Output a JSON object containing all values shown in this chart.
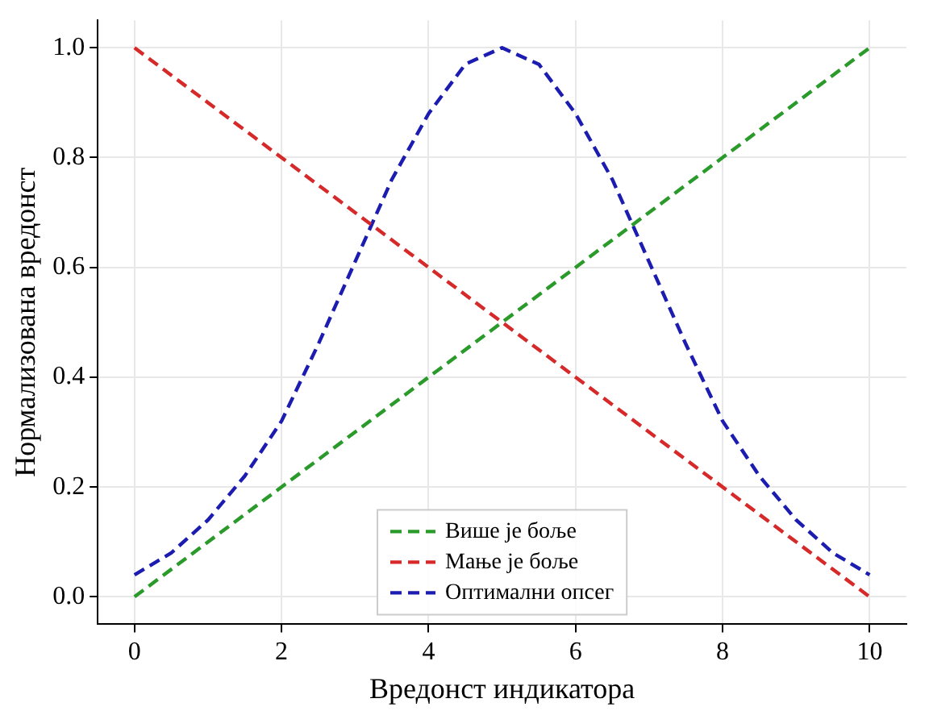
{
  "chart_data": {
    "type": "line",
    "xlabel": "Вредонст индикатора",
    "ylabel": "Нормализована вредонст",
    "xlim": [
      -0.5,
      10.5
    ],
    "ylim": [
      -0.05,
      1.05
    ],
    "xticks": [
      0,
      2,
      4,
      6,
      8,
      10
    ],
    "yticks": [
      {
        "value": 0,
        "label": "0.0"
      },
      0.2,
      0.4,
      0.6,
      0.8,
      {
        "value": 1,
        "label": "1.0"
      }
    ],
    "grid": true,
    "legend": "bottom",
    "line_style": "dashed",
    "marker": "none",
    "series": [
      {
        "name": "Више је боље",
        "color": "#2a9a2a",
        "x": [
          0,
          10
        ],
        "values": [
          0,
          1
        ]
      },
      {
        "name": "Мање је боље",
        "color": "#d62a2a",
        "x": [
          0,
          10
        ],
        "values": [
          1,
          0
        ]
      },
      {
        "name": "Оптимални опсег",
        "color": "#1c1cb0",
        "x": [
          0,
          0.5,
          1,
          1.5,
          2,
          2.5,
          3,
          3.5,
          4,
          4.5,
          5,
          5.5,
          6,
          6.5,
          7,
          7.5,
          8,
          8.5,
          9,
          9.5,
          10
        ],
        "values": [
          0.04,
          0.08,
          0.14,
          0.22,
          0.32,
          0.46,
          0.61,
          0.76,
          0.88,
          0.97,
          1.0,
          0.97,
          0.88,
          0.76,
          0.61,
          0.46,
          0.32,
          0.22,
          0.14,
          0.08,
          0.04
        ]
      }
    ]
  }
}
